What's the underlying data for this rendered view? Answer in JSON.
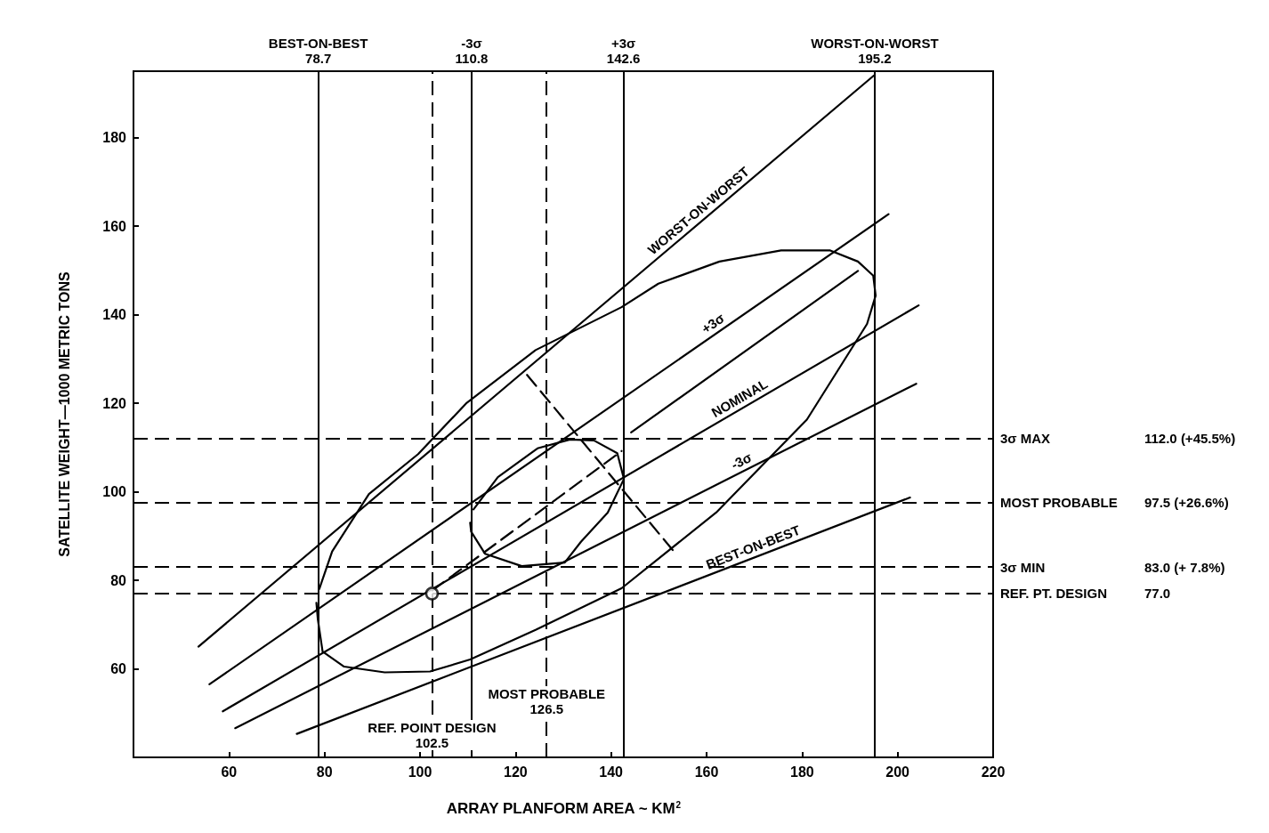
{
  "chart_data": {
    "type": "line",
    "xlabel": "ARRAY PLANFORM AREA ~ KM$^{2}$",
    "ylabel": "SATELLITE WEIGHT—1000 METRIC TONS",
    "xlim": [
      40,
      220
    ],
    "xticks": [
      60,
      80,
      100,
      120,
      140,
      160,
      180,
      200,
      220
    ],
    "ylim": [
      40,
      195
    ],
    "yticks": [
      60,
      80,
      100,
      120,
      140,
      160,
      180
    ],
    "series": [
      {
        "name": "WORST-ON-WORST",
        "color": "#000000",
        "x": [
          53.6,
          195.0
        ],
        "values": [
          65.0,
          194.0
        ]
      },
      {
        "name": "+3σ",
        "color": "#000000",
        "x": [
          55.9,
          198.1
        ],
        "values": [
          56.5,
          162.7
        ]
      },
      {
        "color": "#000000",
        "x": [
          144.2,
          191.7
        ],
        "values": [
          113.4,
          149.9
        ]
      },
      {
        "name": "NOMINAL",
        "color": "#000000",
        "x": [
          58.7,
          204.4
        ],
        "values": [
          50.4,
          142.1
        ]
      },
      {
        "name": "-3σ",
        "color": "#000000",
        "x": [
          61.3,
          203.9
        ],
        "values": [
          46.6,
          124.4
        ]
      },
      {
        "name": "BEST-ON-BEST",
        "color": "#000000",
        "x": [
          74.2,
          202.6
        ],
        "values": [
          45.3,
          98.7
        ]
      },
      {
        "color": "#000000",
        "x": [
          78.3,
          78.6,
          79.6,
          84.1,
          92.6,
          102.1,
          110.5,
          124.2,
          142.2,
          162.0,
          181.0,
          193.6,
          195.4,
          194.9,
          191.7,
          185.9,
          175.6,
          162.7,
          149.9,
          142.2,
          124.2,
          109.8,
          99.6,
          89.3,
          81.6,
          78.9
        ],
        "values": [
          74.9,
          71.2,
          63.9,
          60.5,
          59.2,
          59.4,
          62.1,
          68.8,
          78.2,
          95.3,
          116.3,
          137.9,
          144.3,
          148.8,
          152.0,
          154.5,
          154.5,
          152.0,
          147.0,
          141.7,
          132.0,
          120.1,
          108.5,
          99.5,
          86.5,
          78.0
        ]
      },
      {
        "color": "#000000",
        "x": [
          110.5,
          110.7,
          113.6,
          121.3,
          130.3,
          133.7,
          139.3,
          142.7,
          141.3,
          136.4,
          131.4,
          124.6,
          116.3,
          111.2
        ],
        "values": [
          93.0,
          91.0,
          86.0,
          83.2,
          84.0,
          88.7,
          95.3,
          102.9,
          108.7,
          111.6,
          111.8,
          109.8,
          103.3,
          96.0
        ]
      },
      {
        "color": "#000000",
        "line_style": "dashed",
        "x": [
          122.4,
          153.0
        ],
        "values": [
          126.4,
          86.7
        ]
      },
      {
        "color": "#000000",
        "line_style": "dashed",
        "x": [
          102.6,
          142.2
        ],
        "values": [
          77.7,
          109.2
        ]
      },
      {
        "type": "scatter",
        "marker": "circle",
        "color": "#000000",
        "x": [
          102.5
        ],
        "values": [
          77.0
        ]
      }
    ],
    "ref_lines": [
      {
        "axis": "x",
        "value": 78.7,
        "label": "BEST-ON-BEST\n78.7"
      },
      {
        "axis": "x",
        "value": 110.8,
        "label": "-3σ\n110.8"
      },
      {
        "axis": "x",
        "value": 142.6,
        "label": "+3σ\n142.6"
      },
      {
        "axis": "x",
        "value": 195.2,
        "label": "WORST-ON-WORST\n195.2"
      },
      {
        "axis": "x",
        "value": 102.5,
        "label": "REF. POINT DESIGN\n102.5",
        "line_style": "dashed"
      },
      {
        "axis": "x",
        "value": 126.5,
        "label": "MOST PROBABLE\n126.5",
        "line_style": "dashed"
      },
      {
        "axis": "y",
        "value": 112.0,
        "label": "3σ MAX\t112.0 (+45.5%)",
        "line_style": "dashed"
      },
      {
        "axis": "y",
        "value": 97.5,
        "label": "MOST PROBABLE\t97.5 (+26.6%)",
        "line_style": "dashed"
      },
      {
        "axis": "y",
        "value": 83.0,
        "label": "3σ MIN\t83.0 (+ 7.8%)",
        "line_style": "dashed"
      },
      {
        "axis": "y",
        "value": 77.0,
        "label": "REF. PT. DESIGN\t77.0",
        "line_style": "dashed"
      }
    ]
  }
}
